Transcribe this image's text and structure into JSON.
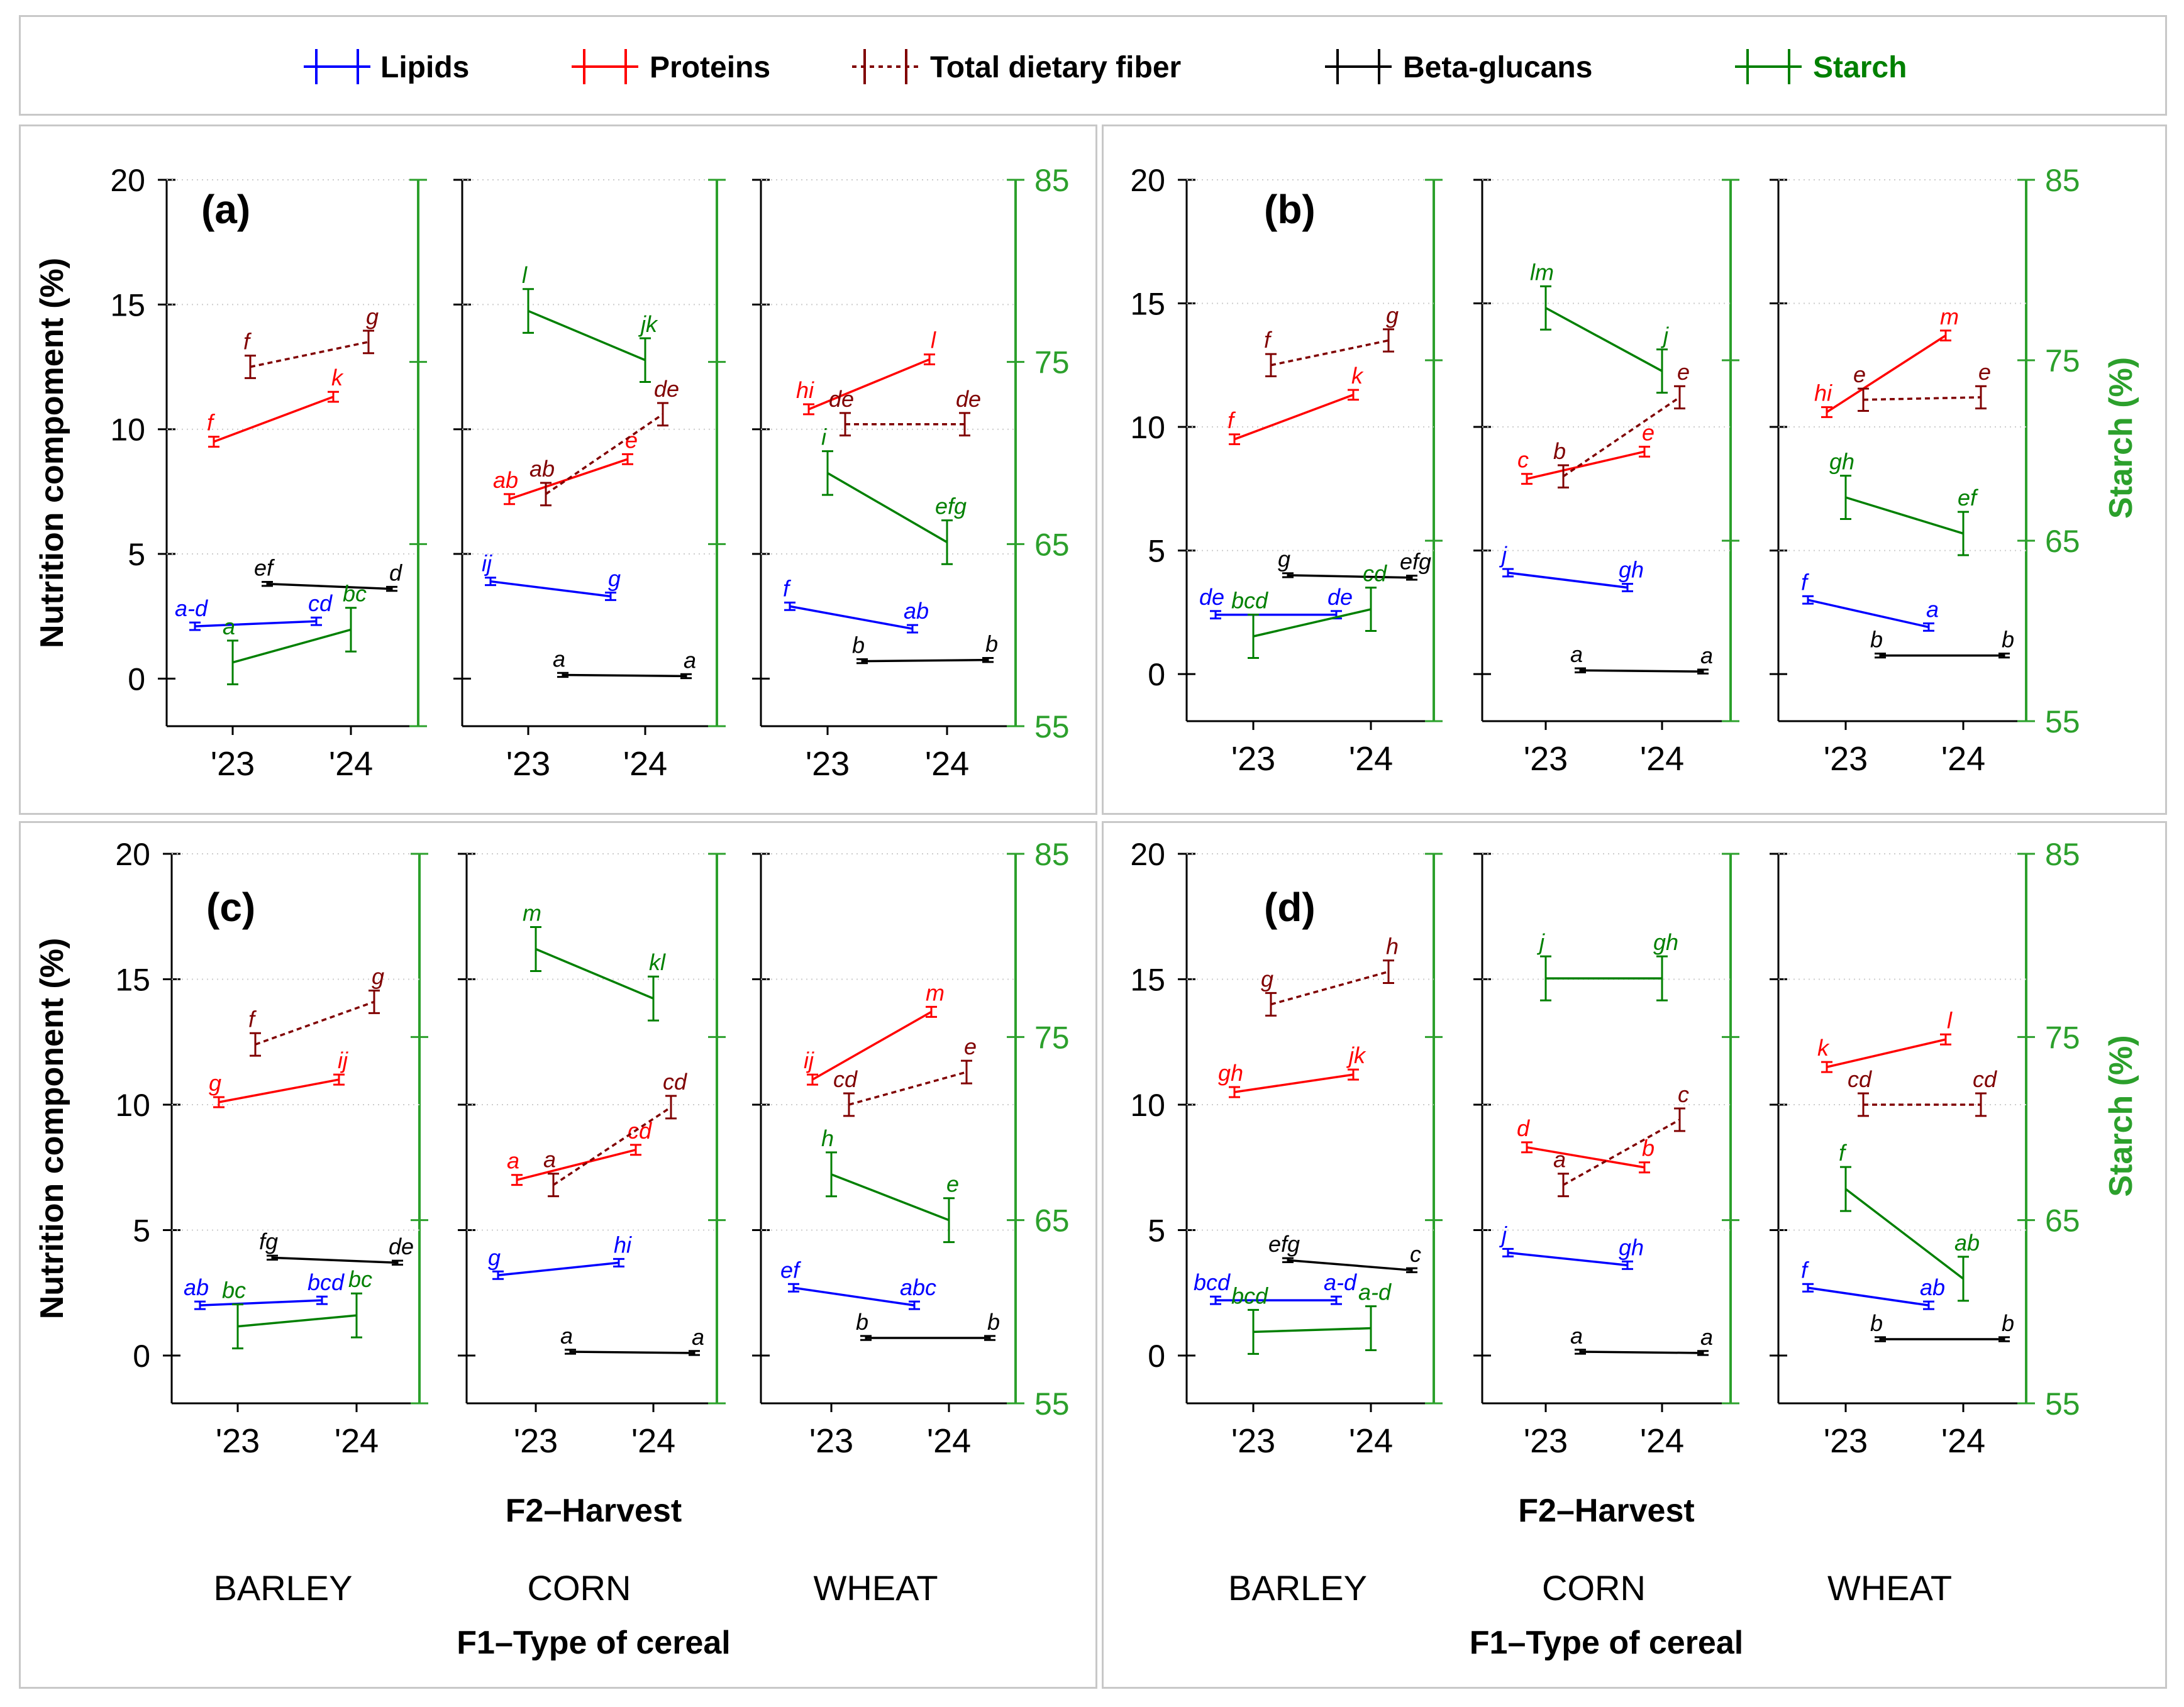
{
  "legend": [
    {
      "key": "lipids",
      "label": "Lipids",
      "color": "#0000ff",
      "dashed": false
    },
    {
      "key": "proteins",
      "label": "Proteins",
      "color": "#ff0000",
      "dashed": false
    },
    {
      "key": "tdf",
      "label": "Total dietary fiber",
      "color": "#800000",
      "dashed": true
    },
    {
      "key": "beta",
      "label": "Beta-glucans",
      "color": "#000000",
      "dashed": false
    },
    {
      "key": "starch",
      "label": "Starch",
      "color": "#008000",
      "dashed": false
    }
  ],
  "colors": {
    "axis": "#000000",
    "starch_axis": "#2ca02c",
    "frame": "#c8c8c8",
    "grid": "#cccccc"
  },
  "cereals": [
    "BARLEY",
    "CORN",
    "WHEAT"
  ],
  "harvests": [
    "'23",
    "'24"
  ],
  "y_ticks": [
    "0",
    "5",
    "10",
    "15",
    "20"
  ],
  "y2_ticks": [
    "55",
    "65",
    "75",
    "85"
  ],
  "xlabel": "F2–Harvest",
  "group_label": "F1–Type of cereal",
  "ylabel": "Nutrition compoment (%)",
  "ylabel_c": "Nutrition component (%)",
  "y2label": "Starch (%)",
  "chart_data": [
    {
      "panel": "(a)",
      "type": "line",
      "ylim": [
        0,
        20
      ],
      "y2lim": [
        55,
        85
      ],
      "series": [
        {
          "name": "Lipids",
          "groups": [
            [
              2.1,
              2.3
            ],
            [
              3.9,
              3.3
            ],
            [
              2.9,
              2.0
            ]
          ],
          "letters": [
            [
              "a-d",
              "cd"
            ],
            [
              "ij",
              "g"
            ],
            [
              "f",
              "ab"
            ]
          ]
        },
        {
          "name": "Proteins",
          "groups": [
            [
              9.5,
              11.3
            ],
            [
              7.2,
              8.8
            ],
            [
              10.8,
              12.8
            ]
          ],
          "letters": [
            [
              "f",
              "k"
            ],
            [
              "ab",
              "e"
            ],
            [
              "hi",
              "l"
            ]
          ]
        },
        {
          "name": "Total dietary fiber",
          "groups": [
            [
              12.5,
              13.5
            ],
            [
              7.4,
              10.6
            ],
            [
              10.2,
              10.2
            ]
          ],
          "letters": [
            [
              "f",
              "g"
            ],
            [
              "ab",
              "de"
            ],
            [
              "de",
              "de"
            ]
          ]
        },
        {
          "name": "Beta-glucans",
          "groups": [
            [
              3.8,
              3.6
            ],
            [
              0.15,
              0.1
            ],
            [
              0.7,
              0.75
            ]
          ],
          "letters": [
            [
              "ef",
              "d"
            ],
            [
              "a",
              "a"
            ],
            [
              "b",
              "b"
            ]
          ]
        },
        {
          "name": "Starch",
          "groups": [
            [
              58.5,
              60.3
            ],
            [
              77.8,
              75.1
            ],
            [
              68.9,
              65.1
            ]
          ],
          "letters": [
            [
              "a",
              "bc"
            ],
            [
              "l",
              "jk"
            ],
            [
              "i",
              "efg"
            ]
          ]
        }
      ]
    },
    {
      "panel": "(b)",
      "type": "line",
      "ylim": [
        0,
        20
      ],
      "y2lim": [
        55,
        85
      ],
      "series": [
        {
          "name": "Lipids",
          "groups": [
            [
              2.4,
              2.4
            ],
            [
              4.1,
              3.5
            ],
            [
              3.0,
              1.9
            ]
          ],
          "letters": [
            [
              "de",
              "de"
            ],
            [
              "j",
              "gh"
            ],
            [
              "f",
              "a"
            ]
          ]
        },
        {
          "name": "Proteins",
          "groups": [
            [
              9.5,
              11.3
            ],
            [
              7.9,
              9.0
            ],
            [
              10.6,
              13.7
            ]
          ],
          "letters": [
            [
              "f",
              "k"
            ],
            [
              "c",
              "e"
            ],
            [
              "hi",
              "m"
            ]
          ]
        },
        {
          "name": "Total dietary fiber",
          "groups": [
            [
              12.5,
              13.5
            ],
            [
              8.0,
              11.2
            ],
            [
              11.1,
              11.2
            ]
          ],
          "letters": [
            [
              "f",
              "g"
            ],
            [
              "b",
              "e"
            ],
            [
              "e",
              "e"
            ]
          ]
        },
        {
          "name": "Beta-glucans",
          "groups": [
            [
              4.0,
              3.9
            ],
            [
              0.15,
              0.1
            ],
            [
              0.75,
              0.75
            ]
          ],
          "letters": [
            [
              "g",
              "efg"
            ],
            [
              "a",
              "a"
            ],
            [
              "b",
              "b"
            ]
          ]
        },
        {
          "name": "Starch",
          "groups": [
            [
              59.7,
              61.2
            ],
            [
              77.9,
              74.4
            ],
            [
              67.4,
              65.4
            ]
          ],
          "letters": [
            [
              "bcd",
              "cd"
            ],
            [
              "lm",
              "j"
            ],
            [
              "gh",
              "ef"
            ]
          ]
        }
      ]
    },
    {
      "panel": "(c)",
      "type": "line",
      "ylim": [
        0,
        20
      ],
      "y2lim": [
        55,
        85
      ],
      "series": [
        {
          "name": "Lipids",
          "groups": [
            [
              2.0,
              2.2
            ],
            [
              3.2,
              3.7
            ],
            [
              2.7,
              2.0
            ]
          ],
          "letters": [
            [
              "ab",
              "bcd"
            ],
            [
              "g",
              "hi"
            ],
            [
              "ef",
              "abc"
            ]
          ]
        },
        {
          "name": "Proteins",
          "groups": [
            [
              10.1,
              11.0
            ],
            [
              7.0,
              8.2
            ],
            [
              11.0,
              13.7
            ]
          ],
          "letters": [
            [
              "g",
              "ij"
            ],
            [
              "a",
              "cd"
            ],
            [
              "ij",
              "m"
            ]
          ]
        },
        {
          "name": "Total dietary fiber",
          "groups": [
            [
              12.4,
              14.1
            ],
            [
              6.8,
              9.9
            ],
            [
              10.0,
              11.3
            ]
          ],
          "letters": [
            [
              "f",
              "g"
            ],
            [
              "a",
              "cd"
            ],
            [
              "cd",
              "e"
            ]
          ]
        },
        {
          "name": "Beta-glucans",
          "groups": [
            [
              3.9,
              3.7
            ],
            [
              0.15,
              0.1
            ],
            [
              0.7,
              0.7
            ]
          ],
          "letters": [
            [
              "fg",
              "de"
            ],
            [
              "a",
              "a"
            ],
            [
              "b",
              "b"
            ]
          ]
        },
        {
          "name": "Starch",
          "groups": [
            [
              59.2,
              59.8
            ],
            [
              79.8,
              77.1
            ],
            [
              67.5,
              65.0
            ]
          ],
          "letters": [
            [
              "bc",
              "bc"
            ],
            [
              "m",
              "kl"
            ],
            [
              "h",
              "e"
            ]
          ]
        }
      ]
    },
    {
      "panel": "(d)",
      "type": "line",
      "ylim": [
        0,
        20
      ],
      "y2lim": [
        55,
        85
      ],
      "series": [
        {
          "name": "Lipids",
          "groups": [
            [
              2.2,
              2.2
            ],
            [
              4.1,
              3.6
            ],
            [
              2.7,
              2.0
            ]
          ],
          "letters": [
            [
              "bcd",
              "a-d"
            ],
            [
              "j",
              "gh"
            ],
            [
              "f",
              "ab"
            ]
          ]
        },
        {
          "name": "Proteins",
          "groups": [
            [
              10.5,
              11.2
            ],
            [
              8.3,
              7.5
            ],
            [
              11.5,
              12.6
            ]
          ],
          "letters": [
            [
              "gh",
              "jk"
            ],
            [
              "d",
              "b"
            ],
            [
              "k",
              "l"
            ]
          ]
        },
        {
          "name": "Total dietary fiber",
          "groups": [
            [
              14.0,
              15.3
            ],
            [
              6.8,
              9.4
            ],
            [
              10.0,
              10.0
            ]
          ],
          "letters": [
            [
              "g",
              "h"
            ],
            [
              "a",
              "c"
            ],
            [
              "cd",
              "cd"
            ]
          ]
        },
        {
          "name": "Beta-glucans",
          "groups": [
            [
              3.8,
              3.4
            ],
            [
              0.15,
              0.1
            ],
            [
              0.65,
              0.65
            ]
          ],
          "letters": [
            [
              "efg",
              "c"
            ],
            [
              "a",
              "a"
            ],
            [
              "b",
              "b"
            ]
          ]
        },
        {
          "name": "Starch",
          "groups": [
            [
              58.9,
              59.1
            ],
            [
              78.2,
              78.2
            ],
            [
              66.7,
              61.8
            ]
          ],
          "letters": [
            [
              "bcd",
              "a-d"
            ],
            [
              "j",
              "gh"
            ],
            [
              "f",
              "ab"
            ]
          ]
        }
      ]
    }
  ]
}
